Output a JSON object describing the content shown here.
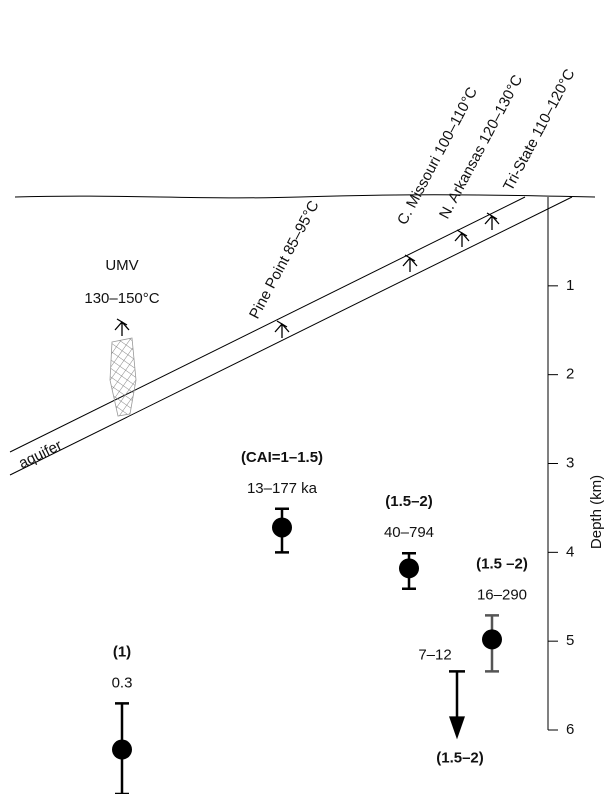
{
  "labels": {
    "umv": "UMV",
    "umv_temp": "130–150°C",
    "aquifer": "aquifer",
    "pine_point": "Pine Point  85–95°C",
    "c_missouri": "C. Missouri  100–110°C",
    "n_arkansas": "N. Arkansas  120–130°C",
    "tri_state": "Tri-State  110–120°C"
  },
  "depth_axis": {
    "label": "Depth (km)",
    "lim": [
      0,
      6
    ],
    "ticks": [
      1,
      2,
      3,
      4,
      5,
      6
    ]
  },
  "points": [
    {
      "cai": "(CAI=1–1.5)",
      "age": "13–177 ka",
      "depth": 3.72,
      "low": 3.51,
      "high": 4.0
    },
    {
      "cai": "(1.5–2)",
      "age": "40–794",
      "depth": 4.18,
      "low": 4.01,
      "high": 4.41
    },
    {
      "cai": "(1.5 –2)",
      "age": "16–290",
      "depth": 4.98,
      "low": 4.71,
      "high": 5.34
    },
    {
      "cai": "(1)",
      "age": "0.3",
      "depth": 6.22,
      "low": 5.7,
      "high": 6.72
    }
  ],
  "arrow": {
    "age": "7–12",
    "cai": "(1.5–2)",
    "top": 5.34
  }
}
